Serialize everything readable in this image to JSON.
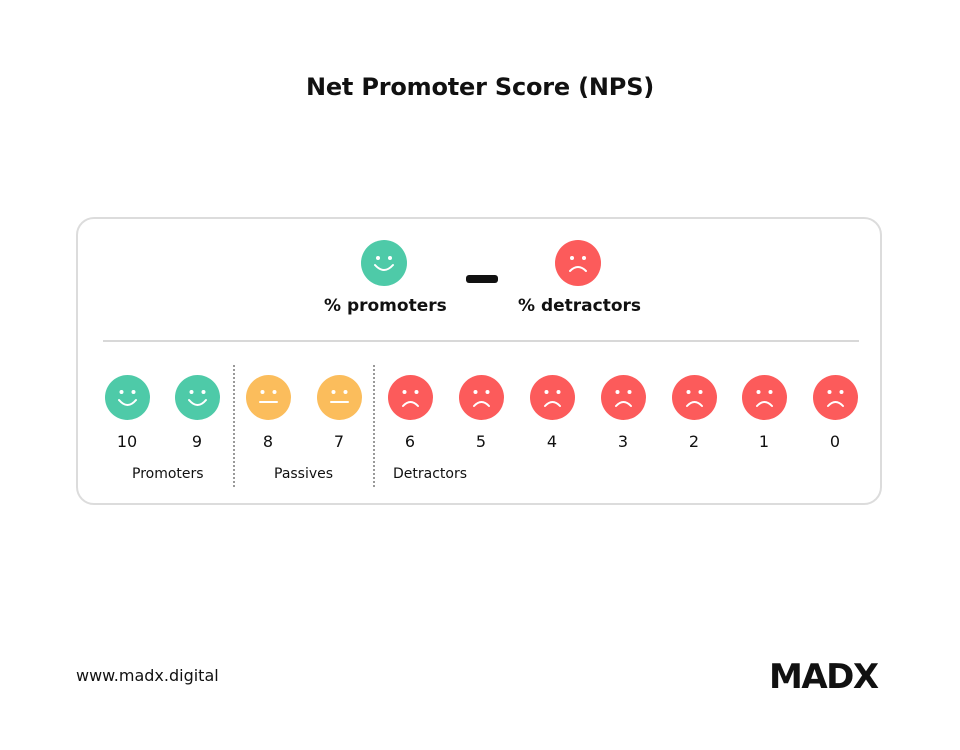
{
  "title": "Net Promoter Score (NPS)",
  "formula": {
    "left_label": "% promoters",
    "right_label": "% detractors"
  },
  "scale": [
    {
      "value": "10",
      "type": "promoter"
    },
    {
      "value": "9",
      "type": "promoter"
    },
    {
      "value": "8",
      "type": "passive"
    },
    {
      "value": "7",
      "type": "passive"
    },
    {
      "value": "6",
      "type": "detractor"
    },
    {
      "value": "5",
      "type": "detractor"
    },
    {
      "value": "4",
      "type": "detractor"
    },
    {
      "value": "3",
      "type": "detractor"
    },
    {
      "value": "2",
      "type": "detractor"
    },
    {
      "value": "1",
      "type": "detractor"
    },
    {
      "value": "0",
      "type": "detractor"
    }
  ],
  "groups": {
    "promoters": "Promoters",
    "passives": "Passives",
    "detractors": "Detractors"
  },
  "colors": {
    "promoter": "#4ecaa8",
    "passive": "#fbbd5c",
    "detractor": "#fc5b5b"
  },
  "icons": {
    "promoter": "smiley-happy-icon",
    "passive": "smiley-neutral-icon",
    "detractor": "smiley-sad-icon"
  },
  "footer": {
    "url": "www.madx.digital",
    "logo": "MADX"
  }
}
